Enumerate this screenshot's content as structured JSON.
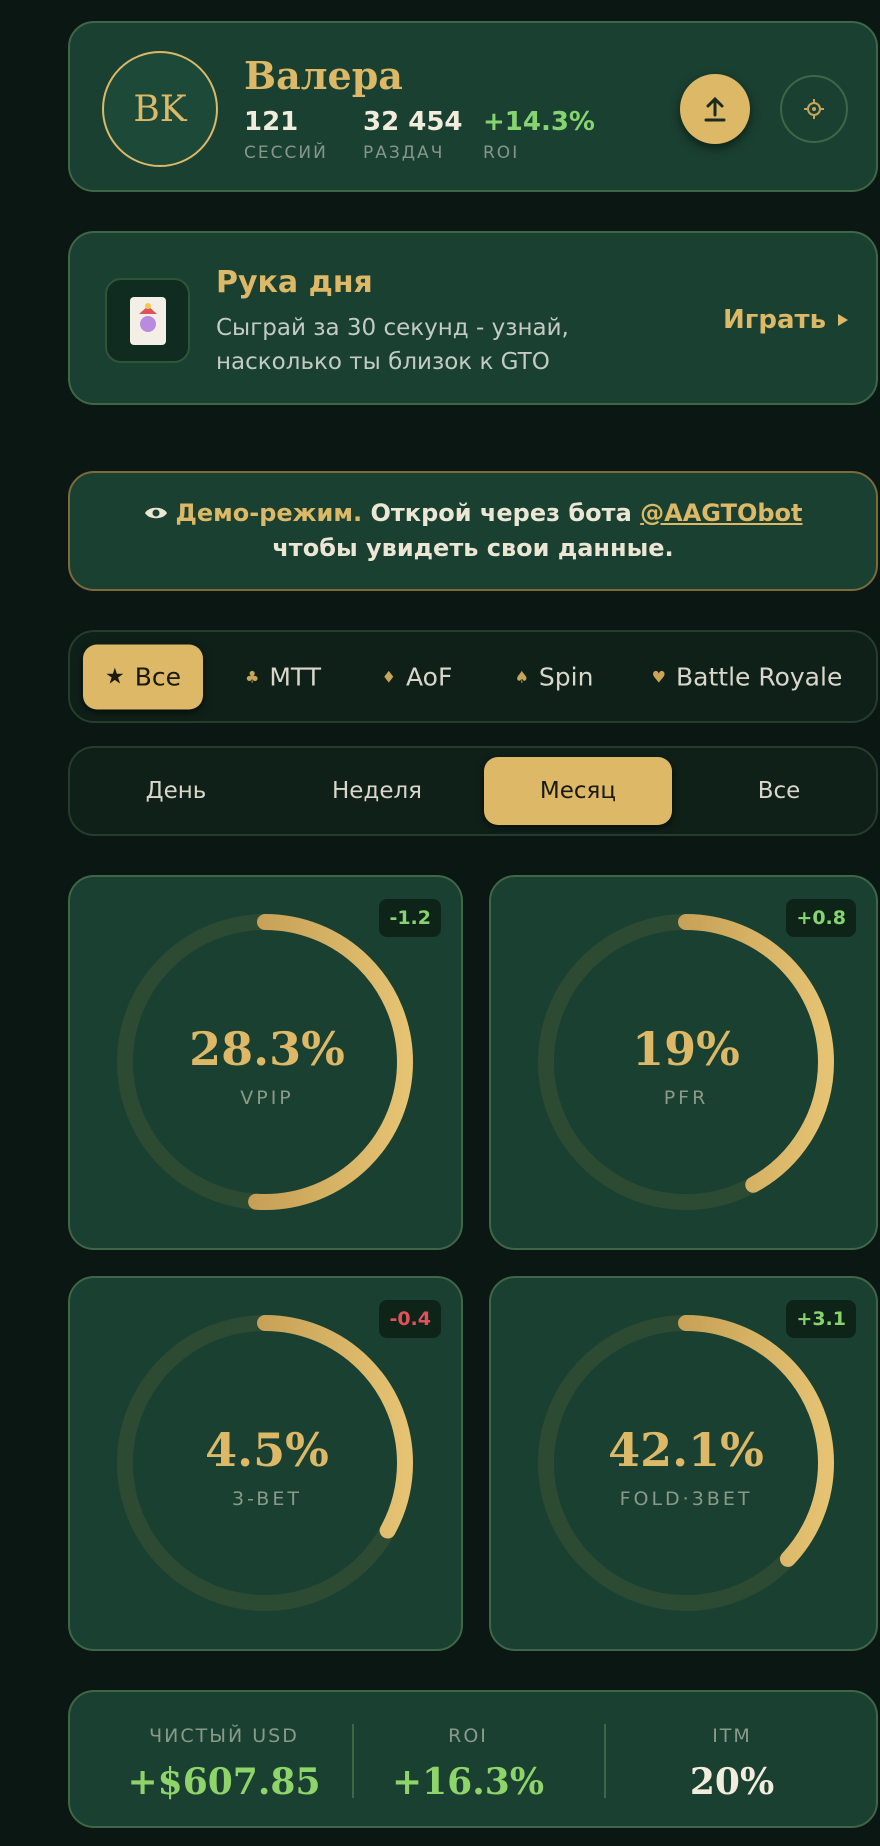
{
  "profile": {
    "avatar": "BK",
    "name": "Валера",
    "stats": [
      {
        "value": "121",
        "label": "СЕССИЙ"
      },
      {
        "value": "32 454",
        "label": "РАЗДАЧ"
      },
      {
        "value": "+14.3%",
        "label": "ROI"
      }
    ]
  },
  "hand_of_day": {
    "title": "Рука дня",
    "text": "Сыграй за 30 секунд - узнай, насколько ты близок к GTO",
    "action": "Играть"
  },
  "demo": {
    "label": "Демо-режим.",
    "text": "Открой через бота",
    "link": "@AAGTObot",
    "text2": "чтобы увидеть свои данные."
  },
  "game_filter": {
    "tabs": [
      {
        "icon": "★",
        "label": "Все"
      },
      {
        "icon": "♣",
        "label": "MTT"
      },
      {
        "icon": "♦",
        "label": "AoF"
      },
      {
        "icon": "♠",
        "label": "Spin"
      },
      {
        "icon": "♥",
        "label": "Battle Royale"
      }
    ],
    "active": 0
  },
  "period_filter": {
    "tabs": [
      "День",
      "Неделя",
      "Месяц",
      "Все"
    ],
    "active": 2
  },
  "stats": [
    {
      "value": "28.3%",
      "label": "VPIP",
      "delta": "-1.2",
      "delta_color": "#86d46f"
    },
    {
      "value": "19%",
      "label": "PFR",
      "delta": "+0.8",
      "delta_color": "#86d46f"
    },
    {
      "value": "4.5%",
      "label": "3-BET",
      "delta": "-0.4",
      "delta_color": "#e0525a"
    },
    {
      "value": "42.1%",
      "label": "FOLD·3BET",
      "delta": "+3.1",
      "delta_color": "#86d46f"
    }
  ],
  "summary": [
    {
      "label": "ЧИСТЫЙ USD",
      "value": "+$607.85",
      "color": "#8fd46a"
    },
    {
      "label": "ROI",
      "value": "+16.3%",
      "color": "#8fd46a"
    },
    {
      "label": "ITM",
      "value": "20%",
      "color": "#f2ecdc"
    }
  ]
}
